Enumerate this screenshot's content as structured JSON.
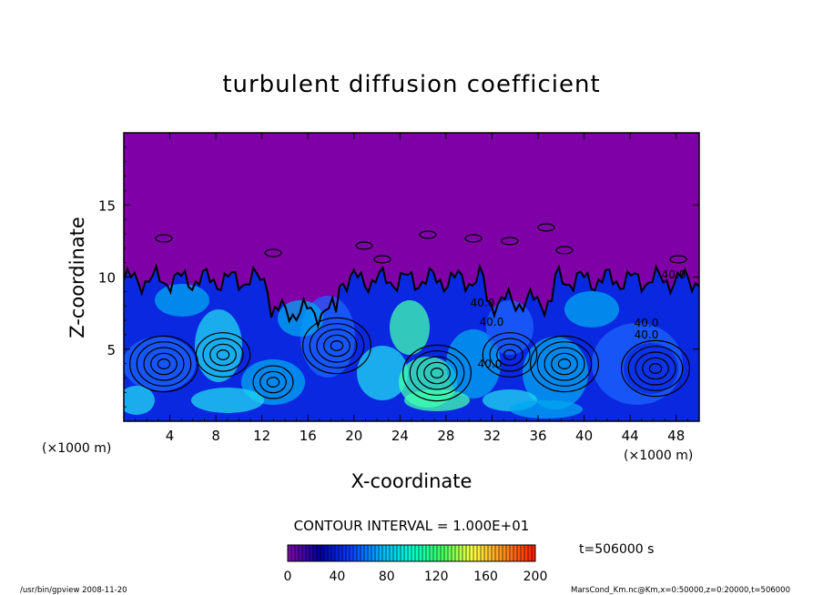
{
  "chart_data": {
    "type": "heatmap",
    "title": "turbulent diffusion coefficient",
    "xlabel": "X-coordinate",
    "ylabel": "Z-coordinate",
    "x_unit": "(×1000 m)",
    "z_unit": "(×1000 m)",
    "xlim": [
      0,
      50
    ],
    "ylim": [
      0,
      20
    ],
    "x_ticks": [
      4,
      8,
      12,
      16,
      20,
      24,
      28,
      32,
      36,
      40,
      44,
      48
    ],
    "y_ticks": [
      5,
      10,
      15
    ],
    "contour_interval_text": "CONTOUR INTERVAL = 1.000E+01",
    "contour_labels": [
      "40.0",
      "40.0",
      "40.0",
      "40.0",
      "40.0",
      "40.0"
    ],
    "time_label": "t=506000  s",
    "colorbar": {
      "ticks": [
        0,
        40,
        80,
        120,
        160,
        200
      ],
      "range": [
        0,
        200
      ],
      "colors": [
        "#7a0aa8",
        "#0000a0",
        "#0a3cff",
        "#00b4ff",
        "#00ffd0",
        "#40ff60",
        "#ffff40",
        "#ff9020",
        "#ff2000"
      ]
    },
    "field_colors": {
      "upper": "#8000a8",
      "lower": [
        "#0a28e0",
        "#1e64ff",
        "#00a8f0",
        "#20d8f0",
        "#40ffb0"
      ]
    },
    "footer_left": "/usr/bin/gpview   2008-11-20",
    "footer_right": "MarsCond_Km.nc@Km,x=0:50000,z=0:20000,t=506000"
  }
}
